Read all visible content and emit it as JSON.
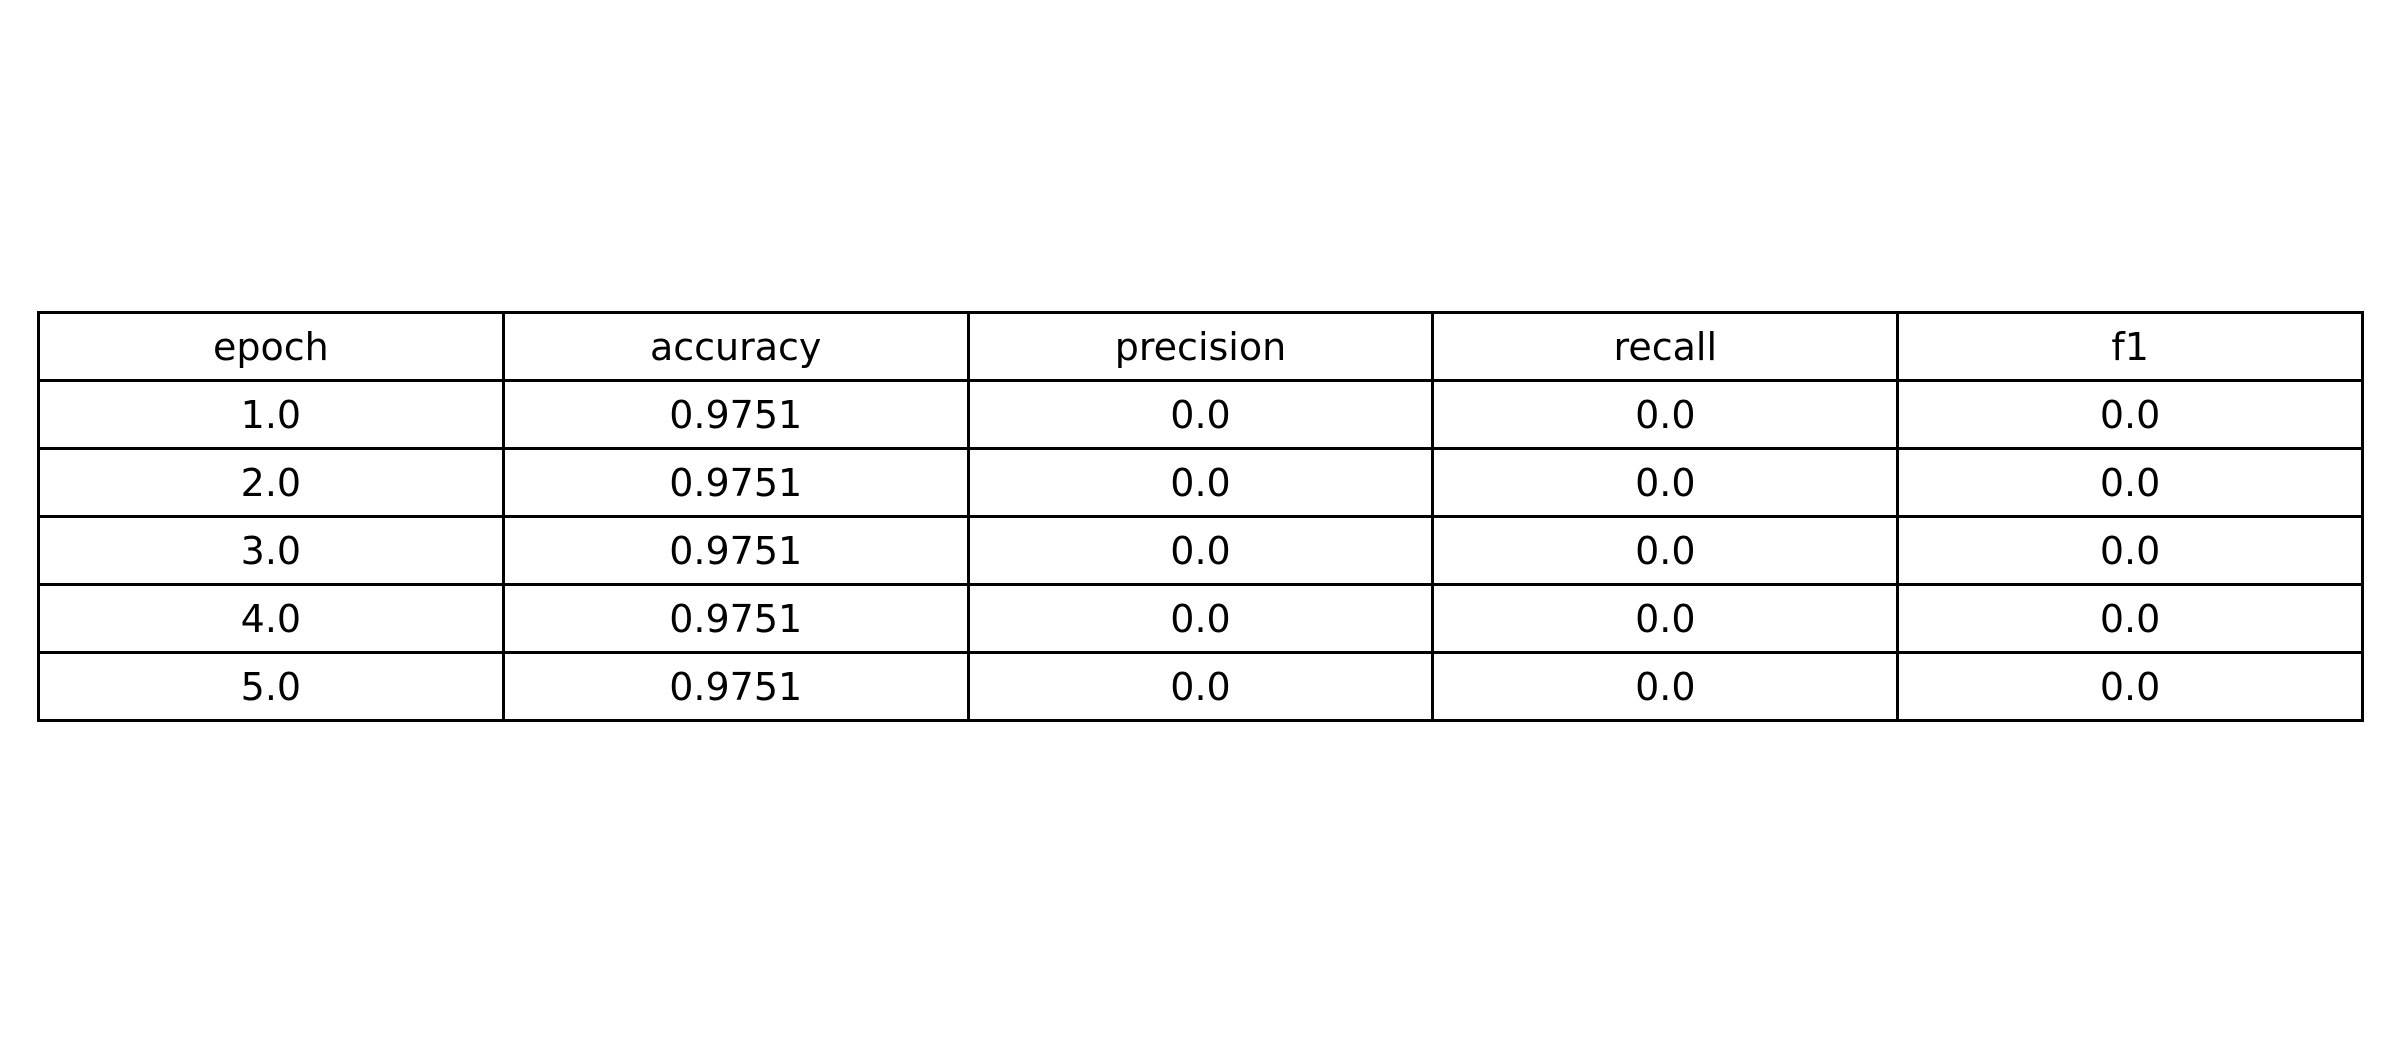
{
  "chart_data": {
    "type": "table",
    "columns": [
      "epoch",
      "accuracy",
      "precision",
      "recall",
      "f1"
    ],
    "rows": [
      [
        "1.0",
        "0.9751",
        "0.0",
        "0.0",
        "0.0"
      ],
      [
        "2.0",
        "0.9751",
        "0.0",
        "0.0",
        "0.0"
      ],
      [
        "3.0",
        "0.9751",
        "0.0",
        "0.0",
        "0.0"
      ],
      [
        "4.0",
        "0.9751",
        "0.0",
        "0.0",
        "0.0"
      ],
      [
        "5.0",
        "0.9751",
        "0.0",
        "0.0",
        "0.0"
      ]
    ],
    "border_color": "#000000",
    "text_color": "#000000",
    "background_color": "#ffffff"
  }
}
